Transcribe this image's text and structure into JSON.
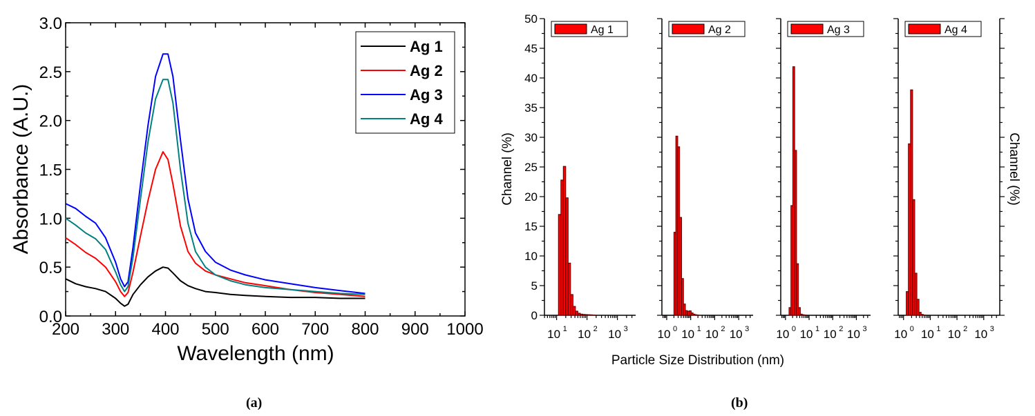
{
  "captions": {
    "a": "(a)",
    "b": "(b)"
  },
  "chart_data": [
    {
      "type": "line",
      "panel": "a",
      "title": "",
      "xlabel": "Wavelength (nm)",
      "ylabel": "Absorbance (A.U.)",
      "xlim": [
        200,
        1000
      ],
      "ylim": [
        0,
        3.0
      ],
      "xticks": [
        200,
        300,
        400,
        500,
        600,
        700,
        800,
        900,
        1000
      ],
      "yticks": [
        0.0,
        0.5,
        1.0,
        1.5,
        2.0,
        2.5,
        3.0
      ],
      "ytick_labels": [
        "0.0",
        "0.5",
        "1.0",
        "1.5",
        "2.0",
        "2.5",
        "3.0"
      ],
      "legend_position": "top-right",
      "grid": false,
      "x": [
        200,
        220,
        240,
        260,
        280,
        300,
        310,
        318,
        325,
        335,
        350,
        365,
        380,
        395,
        405,
        415,
        430,
        445,
        460,
        480,
        500,
        530,
        560,
        600,
        650,
        700,
        750,
        800
      ],
      "series": [
        {
          "name": "Ag 1",
          "color": "#000000",
          "values": [
            0.38,
            0.33,
            0.3,
            0.28,
            0.25,
            0.18,
            0.13,
            0.1,
            0.12,
            0.22,
            0.32,
            0.4,
            0.46,
            0.5,
            0.49,
            0.44,
            0.36,
            0.31,
            0.28,
            0.25,
            0.24,
            0.22,
            0.21,
            0.2,
            0.19,
            0.19,
            0.18,
            0.18
          ]
        },
        {
          "name": "Ag 2",
          "color": "#ff0000",
          "values": [
            0.8,
            0.73,
            0.65,
            0.59,
            0.5,
            0.35,
            0.25,
            0.2,
            0.24,
            0.45,
            0.82,
            1.18,
            1.5,
            1.68,
            1.6,
            1.35,
            0.92,
            0.66,
            0.54,
            0.46,
            0.42,
            0.38,
            0.34,
            0.31,
            0.27,
            0.24,
            0.22,
            0.2
          ]
        },
        {
          "name": "Ag 3",
          "color": "#0000ff",
          "values": [
            1.15,
            1.1,
            1.02,
            0.95,
            0.8,
            0.55,
            0.38,
            0.3,
            0.35,
            0.7,
            1.35,
            1.95,
            2.45,
            2.68,
            2.68,
            2.45,
            1.8,
            1.2,
            0.85,
            0.66,
            0.55,
            0.47,
            0.42,
            0.37,
            0.33,
            0.29,
            0.26,
            0.23
          ]
        },
        {
          "name": "Ag 4",
          "color": "#008080",
          "values": [
            1.0,
            0.93,
            0.85,
            0.79,
            0.68,
            0.45,
            0.32,
            0.25,
            0.3,
            0.6,
            1.2,
            1.78,
            2.22,
            2.42,
            2.42,
            2.18,
            1.5,
            0.95,
            0.66,
            0.5,
            0.42,
            0.36,
            0.32,
            0.29,
            0.27,
            0.25,
            0.23,
            0.22
          ]
        }
      ]
    },
    {
      "type": "bar",
      "panel": "b",
      "xlabel": "Particle Size Distribution (nm)",
      "ylabel_left": "Channel (%)",
      "ylabel_right": "Channel (%)",
      "ylim": [
        0,
        50
      ],
      "yticks": [
        0,
        5,
        10,
        15,
        20,
        25,
        30,
        35,
        40,
        45,
        50
      ],
      "x_scale": "log",
      "bar_color": "#ff0000",
      "bar_edge_color": "#5a0000",
      "grid": false,
      "subplots": [
        {
          "name": "Ag 1",
          "xlim_log10": [
            0.6,
            3.6
          ],
          "xtick_exponents": [
            1,
            2,
            3
          ],
          "bin_log10_start": 1.06,
          "bin_log10_width": 0.08,
          "values": [
            17.0,
            22.8,
            25.1,
            19.8,
            8.8,
            3.5,
            1.5,
            0.7,
            0.35,
            0.2,
            0.15,
            0.12,
            0.1,
            0.08,
            0.05
          ]
        },
        {
          "name": "Ag 2",
          "xlim_log10": [
            -0.2,
            3.6
          ],
          "xtick_exponents": [
            0,
            1,
            2,
            3
          ],
          "bin_log10_start": 0.3,
          "bin_log10_width": 0.08,
          "values": [
            14.0,
            30.2,
            28.4,
            16.5,
            6.2,
            1.9,
            0.8,
            0.7,
            0.75,
            0.4,
            0.2,
            0.1,
            0.05
          ]
        },
        {
          "name": "Ag 3",
          "xlim_log10": [
            -0.2,
            3.6
          ],
          "xtick_exponents": [
            0,
            1,
            2,
            3
          ],
          "bin_log10_start": 0.15,
          "bin_log10_width": 0.08,
          "values": [
            1.3,
            18.5,
            41.9,
            27.8,
            8.7,
            1.3,
            0.2,
            0.1,
            0.05
          ]
        },
        {
          "name": "Ag 4",
          "xlim_log10": [
            -0.2,
            3.6
          ],
          "xtick_exponents": [
            0,
            1,
            2,
            3
          ],
          "bin_log10_start": 0.1,
          "bin_log10_width": 0.08,
          "values": [
            4.0,
            28.9,
            38.0,
            19.5,
            7.1,
            2.7,
            0.5,
            0.15,
            0.05
          ]
        }
      ]
    }
  ]
}
